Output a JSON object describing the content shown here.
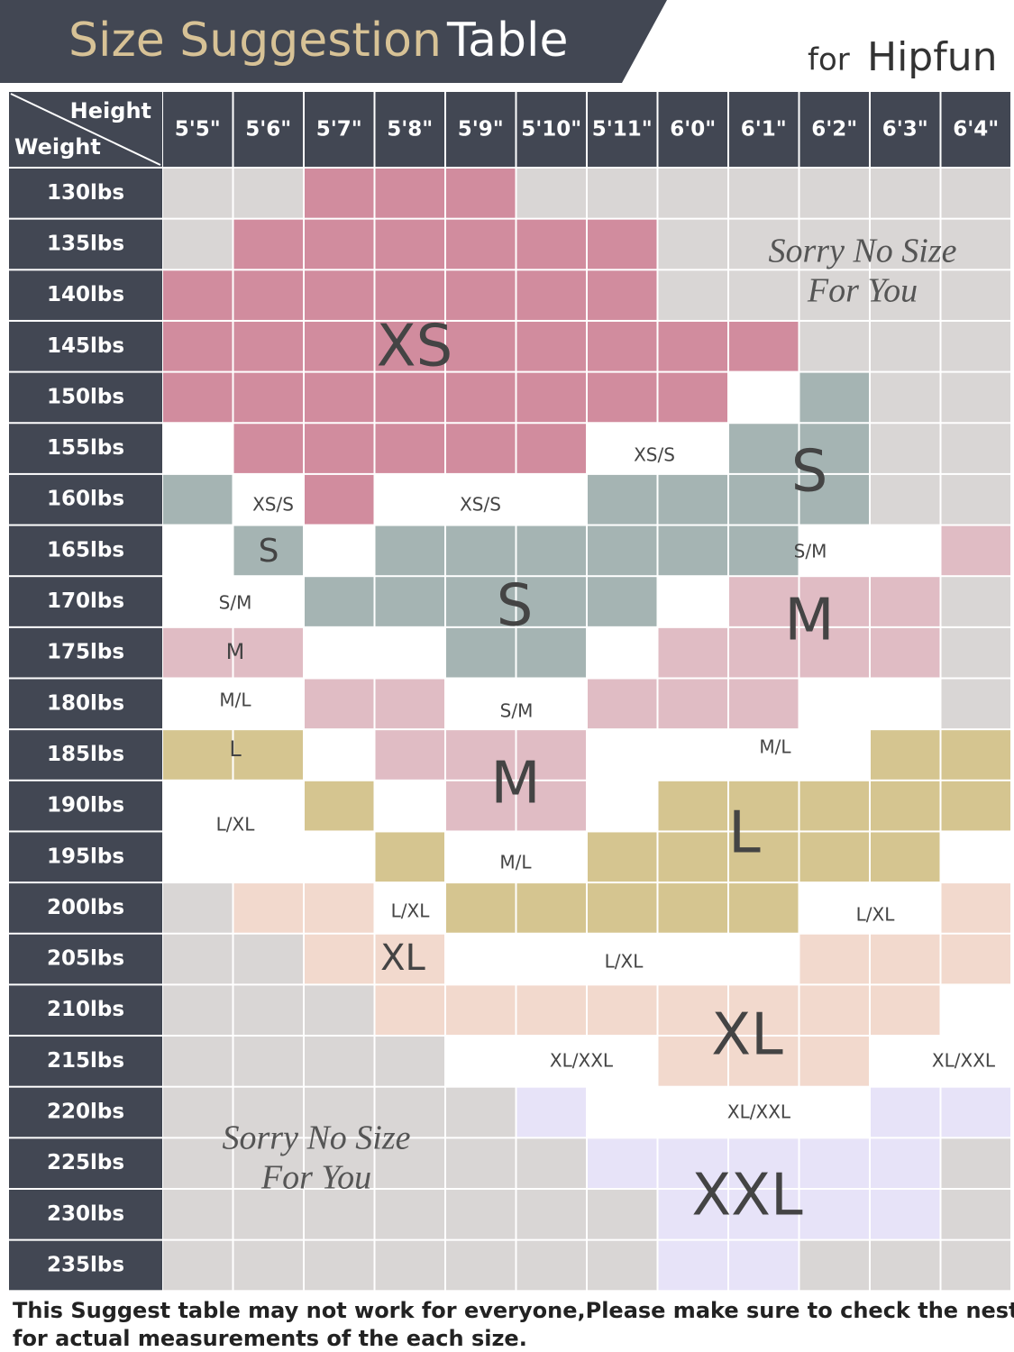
{
  "header": {
    "title_part1": "Size Suggestion",
    "title_part2": "Table",
    "brand_prefix": "for",
    "brand": "Hipfun"
  },
  "table": {
    "corner_top": "Height",
    "corner_bottom": "Weight",
    "columns": [
      "5'5\"",
      "5'6\"",
      "5'7\"",
      "5'8\"",
      "5'9\"",
      "5'10\"",
      "5'11\"",
      "6'0\"",
      "6'1\"",
      "6'2\"",
      "6'3\"",
      "6'4\""
    ],
    "rows": [
      "130lbs",
      "135lbs",
      "140lbs",
      "145lbs",
      "150lbs",
      "155lbs",
      "160lbs",
      "165lbs",
      "170lbs",
      "175lbs",
      "180lbs",
      "185lbs",
      "190lbs",
      "195lbs",
      "200lbs",
      "205lbs",
      "210lbs",
      "215lbs",
      "220lbs",
      "225lbs",
      "230lbs",
      "235lbs"
    ]
  },
  "labels": [
    "XS",
    "XS/S",
    "S",
    "XS/S",
    "XS/S",
    "S",
    "S/M",
    "S",
    "S/M",
    "M",
    "M",
    "M/L",
    "S/M",
    "L",
    "M/L",
    "M",
    "L/XL",
    "L",
    "M/L",
    "L/XL",
    "L/XL",
    "XL",
    "L/XL",
    "XL",
    "XL/XXL",
    "XL/XXL",
    "XL/XXL",
    "XXL"
  ],
  "no_size_notes": [
    [
      "Sorry No Size",
      "For You"
    ],
    [
      "Sorry No Size",
      "For You"
    ]
  ],
  "footer": [
    "This Suggest table may not work for everyone,Please make sure to check the nest table",
    "for actual measurements of the each size."
  ]
}
